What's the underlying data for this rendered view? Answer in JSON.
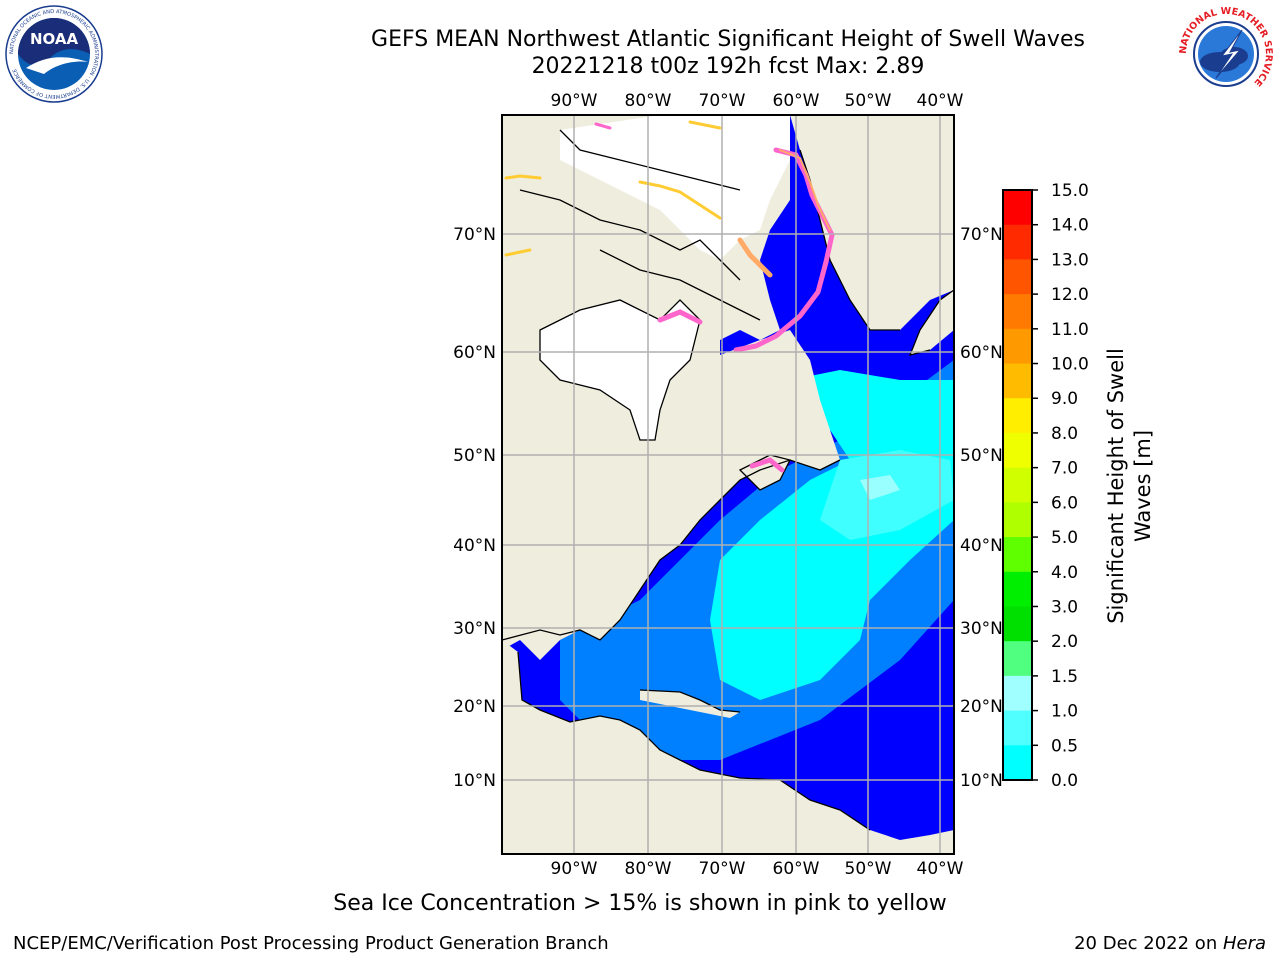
{
  "header": {
    "title_line1": "GEFS MEAN Northwest Atlantic Significant Height of Swell Waves",
    "title_line2": "20221218 t00z 192h fcst   Max: 2.89"
  },
  "logos": {
    "left": "NOAA",
    "left_ring_text": "NATIONAL OCEANIC AND ATMOSPHERIC ADMINISTRATION · U.S. DEPARTMENT OF COMMERCE",
    "right_ring_text": "NATIONAL WEATHER SERVICE"
  },
  "map": {
    "lon_labels": [
      "90°W",
      "80°W",
      "70°W",
      "60°W",
      "50°W",
      "40°W"
    ],
    "lat_labels": [
      "70°N",
      "60°N",
      "50°N",
      "40°N",
      "30°N",
      "20°N",
      "10°N"
    ],
    "colors": {
      "land": "#efeddd",
      "ice": "#ffffff",
      "wave_0_05": "#0000ff",
      "wave_05_1": "#0080ff",
      "wave_1_15": "#00ffff",
      "wave_15_2": "#40ffff",
      "wave_2_25": "#99ffff",
      "grid": "#b0b0b0"
    }
  },
  "colorbar": {
    "label": "Significant Height of Swell Waves [m]",
    "label_line1": "Significant Height of Swell",
    "label_line2": "Waves [m]",
    "ticks": [
      "15.0",
      "14.0",
      "13.0",
      "12.0",
      "11.0",
      "10.0",
      "9.0",
      "8.0",
      "7.0",
      "6.0",
      "5.0",
      "4.0",
      "3.0",
      "2.0",
      "1.5",
      "1.0",
      "0.5",
      "0.0"
    ],
    "colors": [
      "#ff0000",
      "#ff2a00",
      "#ff5500",
      "#ff7a00",
      "#ff9900",
      "#ffbb00",
      "#ffee00",
      "#f0ff00",
      "#d0ff00",
      "#b0ff00",
      "#60ff00",
      "#00ee00",
      "#00e000",
      "#50ff80",
      "#a0ffff",
      "#50ffff",
      "#00ffff",
      "#0080ff",
      "#0000ff"
    ]
  },
  "caption": "Sea Ice Concentration > 15% is shown in pink to yellow",
  "footer": {
    "left": "NCEP/EMC/Verification Post Processing Product Generation Branch",
    "right_prefix": "20 Dec 2022 on ",
    "right_host": "Hera"
  }
}
